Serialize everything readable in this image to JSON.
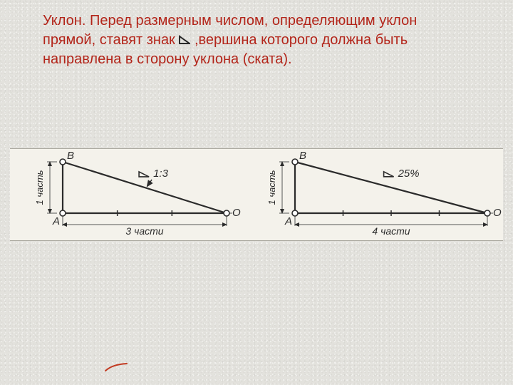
{
  "text": {
    "color": "#b3251a",
    "fontsize": 20,
    "line1_pre": "Уклон. Перед размерным числом, определяющим уклон",
    "line2_pre": "прямой, ставят знак ",
    "line2_post": " ,вершина которого должна быть",
    "line3": "направлена в сторону уклона (ската)."
  },
  "angle_symbol": {
    "stroke": "#2a2a2a",
    "stroke_width": 2
  },
  "diagram_strip": {
    "bg": "#f4f2eb",
    "border": "#a9a79e"
  },
  "diagrams": {
    "font_family": "Arial, sans-serif",
    "label_color": "#2b2b2b",
    "stroke_main": "#2b2b2b",
    "stroke_thin": "#555555",
    "node_fill": "#ffffff",
    "node_stroke": "#2b2b2b",
    "node_radius": 4,
    "left": {
      "slope_label": "1:3",
      "x_dim_label": "3 части",
      "y_dim_label": "1 часть",
      "points": {
        "A": "A",
        "B": "B",
        "O": "O"
      },
      "x_ticks": 3,
      "geom": {
        "Ax": 74,
        "Ay": 90,
        "Bx": 74,
        "By": 18,
        "Ox": 304,
        "Oy": 90
      },
      "has_arrow_to_slope": true
    },
    "right": {
      "slope_label": "25%",
      "x_dim_label": "4 части",
      "y_dim_label": "1 часть",
      "points": {
        "A": "A",
        "B": "B",
        "O": "O"
      },
      "x_ticks": 4,
      "geom": {
        "Ax": 400,
        "Ay": 90,
        "Bx": 400,
        "By": 18,
        "Ox": 670,
        "Oy": 90
      },
      "has_arrow_to_slope": false
    }
  },
  "red_mark": {
    "stroke": "#c23b22",
    "stroke_width": 2
  }
}
